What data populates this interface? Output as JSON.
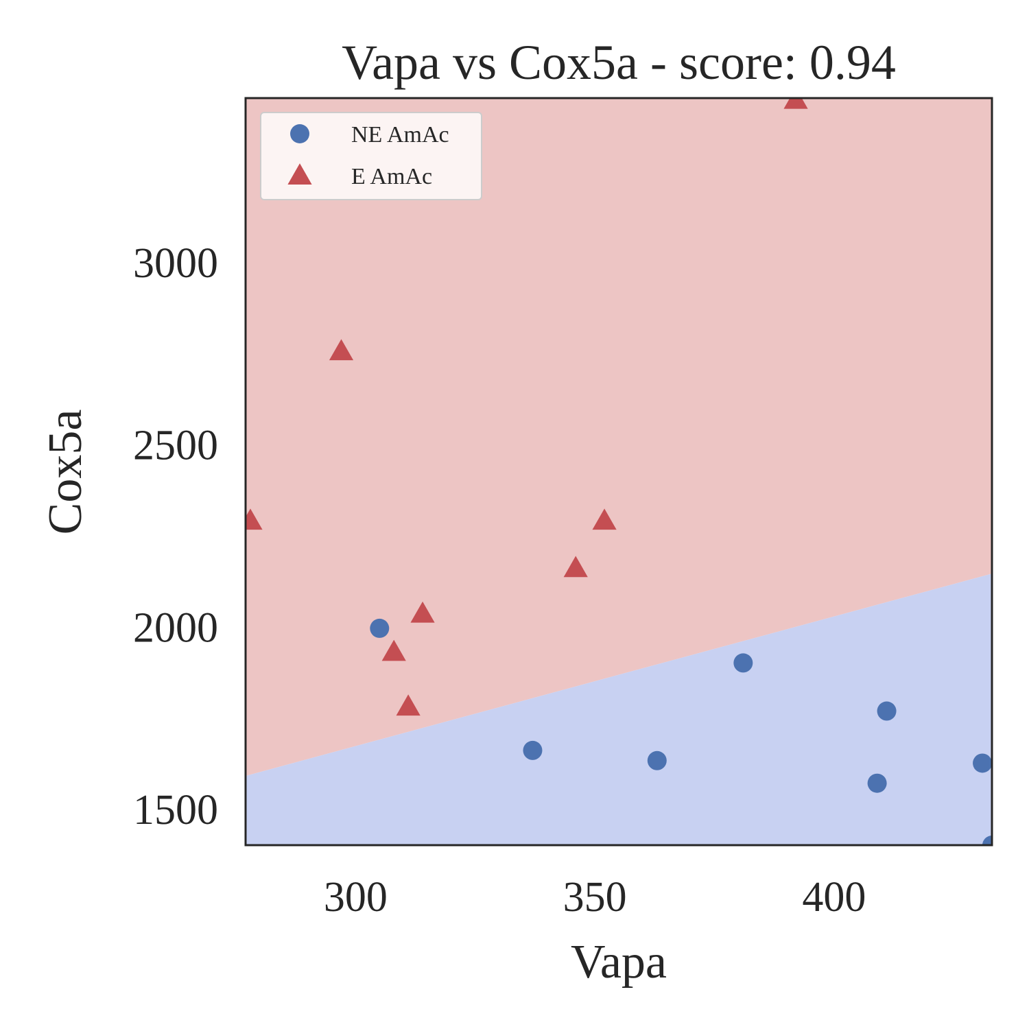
{
  "chart_data": {
    "type": "scatter",
    "title": "Vapa vs Cox5a - score: 0.94",
    "xlabel": "Vapa",
    "ylabel": "Cox5a",
    "xlim": [
      277,
      433
    ],
    "ylim": [
      1400,
      3450
    ],
    "xticks": [
      300,
      350,
      400
    ],
    "yticks": [
      1500,
      2000,
      2500,
      3000
    ],
    "grid": false,
    "legend_position": "top-left",
    "decision_regions": {
      "boundary": [
        [
          277,
          1590
        ],
        [
          433,
          2145
        ]
      ],
      "above_color": "#edc5c4",
      "below_color": "#c8d1f2",
      "above_class": "E AmAc",
      "below_class": "NE AmAc"
    },
    "series": [
      {
        "name": "NE AmAc",
        "marker": "circle",
        "color": "#4c72b0",
        "points": [
          [
            305,
            1995
          ],
          [
            337,
            1660
          ],
          [
            363,
            1632
          ],
          [
            381,
            1900
          ],
          [
            409,
            1570
          ],
          [
            411,
            1768
          ],
          [
            431,
            1625
          ],
          [
            433,
            1400
          ]
        ]
      },
      {
        "name": "E AmAc",
        "marker": "triangle",
        "color": "#c44e52",
        "points": [
          [
            278,
            2290
          ],
          [
            297,
            2755
          ],
          [
            308,
            1930
          ],
          [
            311,
            1780
          ],
          [
            314,
            2035
          ],
          [
            346,
            2160
          ],
          [
            352,
            2290
          ],
          [
            392,
            3445
          ]
        ]
      }
    ]
  }
}
